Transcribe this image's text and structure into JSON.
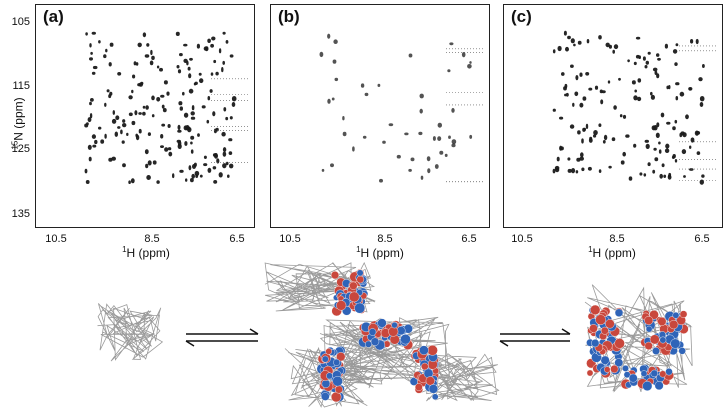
{
  "panels": [
    {
      "label": "(a)"
    },
    {
      "label": "(b)"
    },
    {
      "label": "(c)"
    }
  ],
  "x_ticks": [
    "10.5",
    "8.5",
    "6.5"
  ],
  "y_ticks": [
    "105",
    "115",
    "125",
    "135"
  ],
  "x_label": {
    "sup": "1",
    "text": "H (ppm)"
  },
  "y_label": {
    "sup": "15",
    "text": "N (ppm)"
  },
  "colors": {
    "peak": "#1a1a1a",
    "ribbon": "#9a9a9a",
    "sphere_blue": "#2f64b8",
    "sphere_red": "#c9473c"
  }
}
